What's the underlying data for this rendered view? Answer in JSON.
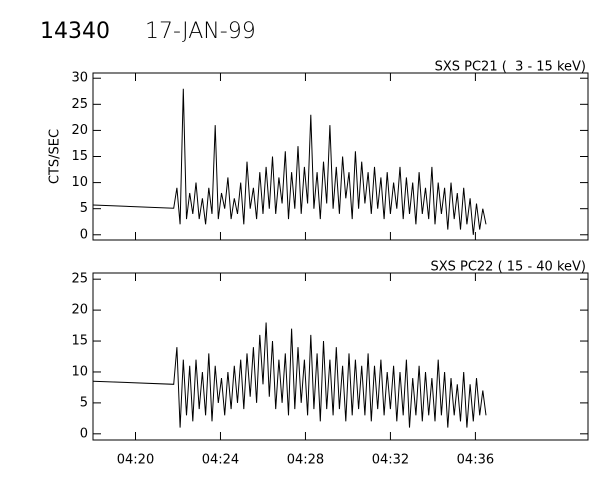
{
  "header": {
    "id": "14340",
    "date": "17-JAN-99"
  },
  "chart_data": [
    {
      "type": "line",
      "title": "SXS PC21 (  3 - 15 keV)",
      "ylabel": "CTS/SEC",
      "x": [
        18,
        21.8,
        21.95,
        22.1,
        22.25,
        22.4,
        22.55,
        22.7,
        22.85,
        23,
        23.15,
        23.3,
        23.45,
        23.6,
        23.75,
        23.9,
        24.05,
        24.2,
        24.35,
        24.5,
        24.65,
        24.8,
        24.95,
        25.1,
        25.25,
        25.4,
        25.55,
        25.7,
        25.85,
        26,
        26.15,
        26.3,
        26.45,
        26.6,
        26.75,
        26.9,
        27.05,
        27.2,
        27.35,
        27.5,
        27.65,
        27.8,
        27.95,
        28.1,
        28.25,
        28.4,
        28.55,
        28.7,
        28.85,
        29,
        29.15,
        29.3,
        29.45,
        29.6,
        29.75,
        29.9,
        30.05,
        30.2,
        30.35,
        30.5,
        30.65,
        30.8,
        30.95,
        31.1,
        31.25,
        31.4,
        31.55,
        31.7,
        31.85,
        32,
        32.15,
        32.3,
        32.45,
        32.6,
        32.75,
        32.9,
        33.05,
        33.2,
        33.35,
        33.5,
        33.65,
        33.8,
        33.95,
        34.1,
        34.25,
        34.4,
        34.55,
        34.7,
        34.85,
        35,
        35.15,
        35.3,
        35.45,
        35.6,
        35.75,
        35.9,
        36.05,
        36.2,
        36.35,
        36.5
      ],
      "series": [
        {
          "color": "#000000",
          "values": [
            5.7,
            5.1,
            9,
            2,
            28,
            3,
            8,
            4,
            10,
            3,
            7,
            2,
            9,
            4,
            21,
            3,
            8,
            5,
            11,
            3,
            7,
            4,
            10,
            2,
            14,
            5,
            9,
            3,
            12,
            4,
            13,
            5,
            15,
            4,
            11,
            6,
            16,
            3,
            12,
            5,
            17,
            4,
            13,
            6,
            23,
            5,
            12,
            3,
            14,
            6,
            21,
            5,
            13,
            4,
            15,
            7,
            12,
            3,
            16,
            5,
            14,
            6,
            12,
            4,
            13,
            5,
            11,
            3,
            12,
            4,
            10,
            5,
            13,
            3,
            11,
            4,
            10,
            2,
            12,
            4,
            9,
            3,
            13,
            2,
            10,
            4,
            9,
            1,
            10,
            3,
            8,
            1,
            9,
            2,
            7,
            0,
            6,
            1,
            5,
            2
          ]
        }
      ],
      "xlim": [
        18,
        41.3
      ],
      "xticks": [
        20,
        24,
        28,
        32,
        36
      ],
      "ylim": [
        -1,
        31
      ],
      "yticks": [
        0,
        5,
        10,
        15,
        20,
        25,
        30
      ]
    },
    {
      "type": "line",
      "title": "SXS PC22 ( 15 - 40 keV)",
      "x": [
        18,
        21.8,
        21.95,
        22.1,
        22.25,
        22.4,
        22.55,
        22.7,
        22.85,
        23,
        23.15,
        23.3,
        23.45,
        23.6,
        23.75,
        23.9,
        24.05,
        24.2,
        24.35,
        24.5,
        24.65,
        24.8,
        24.95,
        25.1,
        25.25,
        25.4,
        25.55,
        25.7,
        25.85,
        26,
        26.15,
        26.3,
        26.45,
        26.6,
        26.75,
        26.9,
        27.05,
        27.2,
        27.35,
        27.5,
        27.65,
        27.8,
        27.95,
        28.1,
        28.25,
        28.4,
        28.55,
        28.7,
        28.85,
        29,
        29.15,
        29.3,
        29.45,
        29.6,
        29.75,
        29.9,
        30.05,
        30.2,
        30.35,
        30.5,
        30.65,
        30.8,
        30.95,
        31.1,
        31.25,
        31.4,
        31.55,
        31.7,
        31.85,
        32,
        32.15,
        32.3,
        32.45,
        32.6,
        32.75,
        32.9,
        33.05,
        33.2,
        33.35,
        33.5,
        33.65,
        33.8,
        33.95,
        34.1,
        34.25,
        34.4,
        34.55,
        34.7,
        34.85,
        35,
        35.15,
        35.3,
        35.45,
        35.6,
        35.75,
        35.9,
        36.05,
        36.2,
        36.35,
        36.5
      ],
      "series": [
        {
          "color": "#000000",
          "values": [
            8.5,
            8,
            14,
            1,
            12,
            3,
            11,
            2,
            12,
            4,
            10,
            3,
            13,
            2,
            11,
            5,
            9,
            3,
            10,
            4,
            11,
            5,
            12,
            4,
            13,
            6,
            14,
            5,
            16,
            8,
            18,
            6,
            15,
            4,
            12,
            5,
            13,
            3,
            17,
            4,
            14,
            5,
            12,
            3,
            16,
            4,
            13,
            2,
            15,
            4,
            12,
            3,
            14,
            4,
            11,
            2,
            13,
            3,
            12,
            4,
            11,
            3,
            13,
            2,
            11,
            4,
            12,
            3,
            10,
            4,
            11,
            2,
            10,
            3,
            12,
            1,
            9,
            3,
            11,
            2,
            10,
            3,
            9,
            2,
            12,
            3,
            10,
            1,
            9,
            3,
            8,
            2,
            10,
            1,
            8,
            2,
            9,
            3,
            7,
            3
          ]
        }
      ],
      "xlim": [
        18,
        41.3
      ],
      "xticks": [
        {
          "value": 20,
          "label": "04:20"
        },
        {
          "value": 24,
          "label": "04:24"
        },
        {
          "value": 28,
          "label": "04:28"
        },
        {
          "value": 32,
          "label": "04:32"
        },
        {
          "value": 36,
          "label": "04:36"
        }
      ],
      "ylim": [
        -1,
        26
      ],
      "yticks": [
        0,
        5,
        10,
        15,
        20,
        25
      ]
    }
  ]
}
